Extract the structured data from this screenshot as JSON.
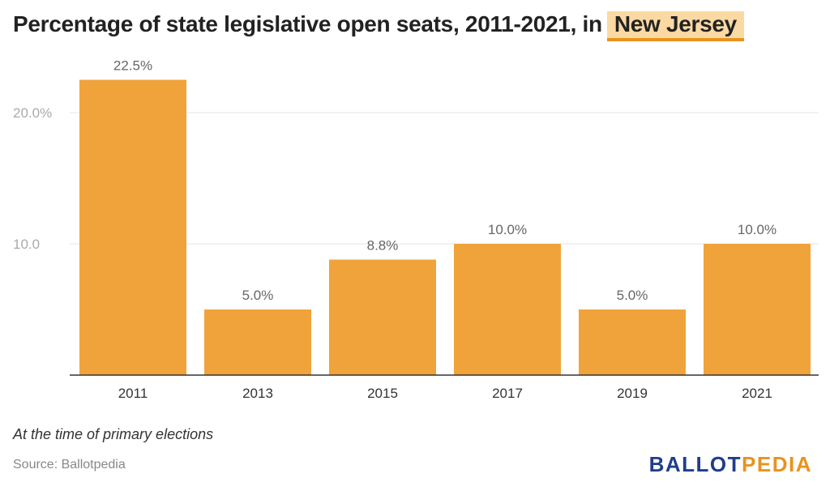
{
  "header": {
    "title_prefix": "Percentage of state legislative open seats, 2011-2021, in",
    "title_highlight": "New Jersey"
  },
  "chart_data": {
    "type": "bar",
    "categories": [
      "2011",
      "2013",
      "2015",
      "2017",
      "2019",
      "2021"
    ],
    "values": [
      22.5,
      5.0,
      8.8,
      10.0,
      5.0,
      10.0
    ],
    "data_labels": [
      "22.5%",
      "5.0%",
      "8.8%",
      "10.0%",
      "5.0%",
      "10.0%"
    ],
    "y_ticks": [
      10,
      20
    ],
    "y_tick_labels": [
      "10.0",
      "20.0%"
    ],
    "ylim": [
      0,
      25
    ],
    "grid": true,
    "colors": {
      "bar": "#f0a33a",
      "grid": "#e6e6e6",
      "axis": "#333333"
    }
  },
  "footer": {
    "note": "At the time of primary elections",
    "source": "Source: Ballotpedia",
    "logo_part1": "BALLOT",
    "logo_part2": "PEDIA"
  }
}
